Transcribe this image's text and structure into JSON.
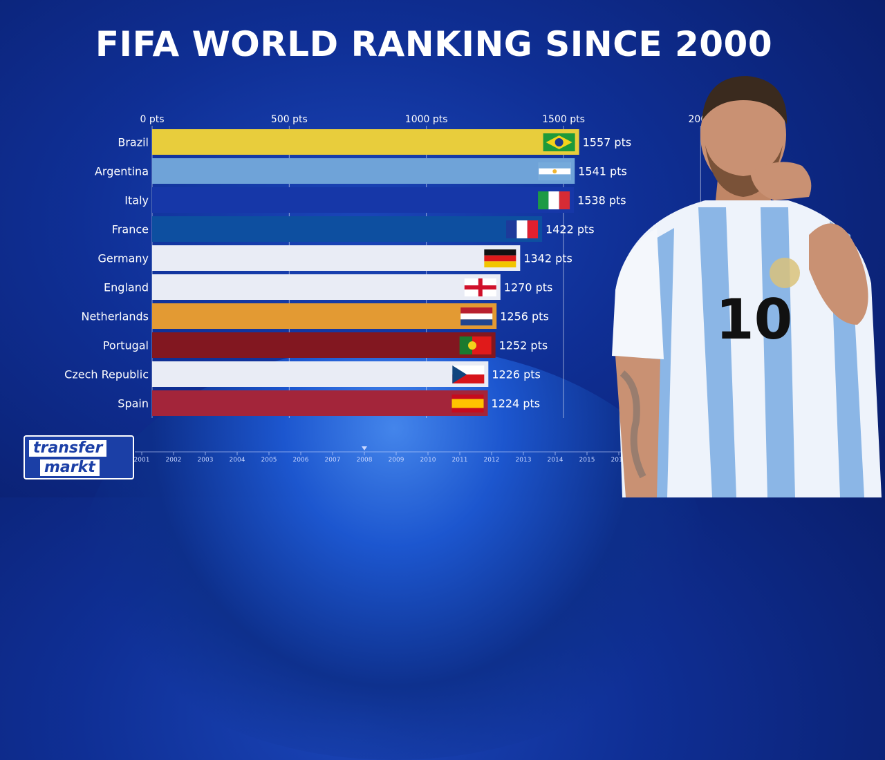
{
  "title": "FIFA WORLD RANKING SINCE 2000",
  "logo": {
    "line1": "transfer",
    "line2": "markt"
  },
  "chart_data": {
    "type": "bar",
    "orientation": "horizontal",
    "title": "FIFA WORLD RANKING SINCE 2000",
    "xlim": [
      0,
      2000
    ],
    "ticks": [
      0,
      500,
      1000,
      1500,
      2000
    ],
    "tick_labels": [
      "0 pts",
      "500 pts",
      "1000 pts",
      "1500 pts",
      "2000"
    ],
    "categories": [
      "Brazil",
      "Argentina",
      "Italy",
      "France",
      "Germany",
      "England",
      "Netherlands",
      "Portugal",
      "Czech Republic",
      "Spain"
    ],
    "values": [
      1557,
      1541,
      1538,
      1422,
      1342,
      1270,
      1256,
      1252,
      1226,
      1224
    ],
    "value_labels": [
      "1557 pts",
      "1541 pts",
      "1538 pts",
      "1422 pts",
      "1342 pts",
      "1270 pts",
      "1256 pts",
      "1252 pts",
      "1226 pts",
      "1224 pts"
    ],
    "bar_colors": [
      "#e8cd3c",
      "#6fa3d8",
      "#1637a8",
      "#0d4fa0",
      "#e9ecf5",
      "#e9ecf5",
      "#e39a33",
      "#821720",
      "#e9ecf5",
      "#a3253a"
    ],
    "flags": [
      "brazil",
      "argentina",
      "italy",
      "france",
      "germany",
      "england",
      "netherlands",
      "portugal",
      "czech-republic",
      "spain"
    ],
    "timeline": {
      "years": [
        "2001",
        "2002",
        "2003",
        "2004",
        "2005",
        "2006",
        "2007",
        "2008",
        "2009",
        "2010",
        "2011",
        "2012",
        "2013",
        "2014",
        "2015",
        "2016"
      ],
      "current": "2008"
    }
  }
}
